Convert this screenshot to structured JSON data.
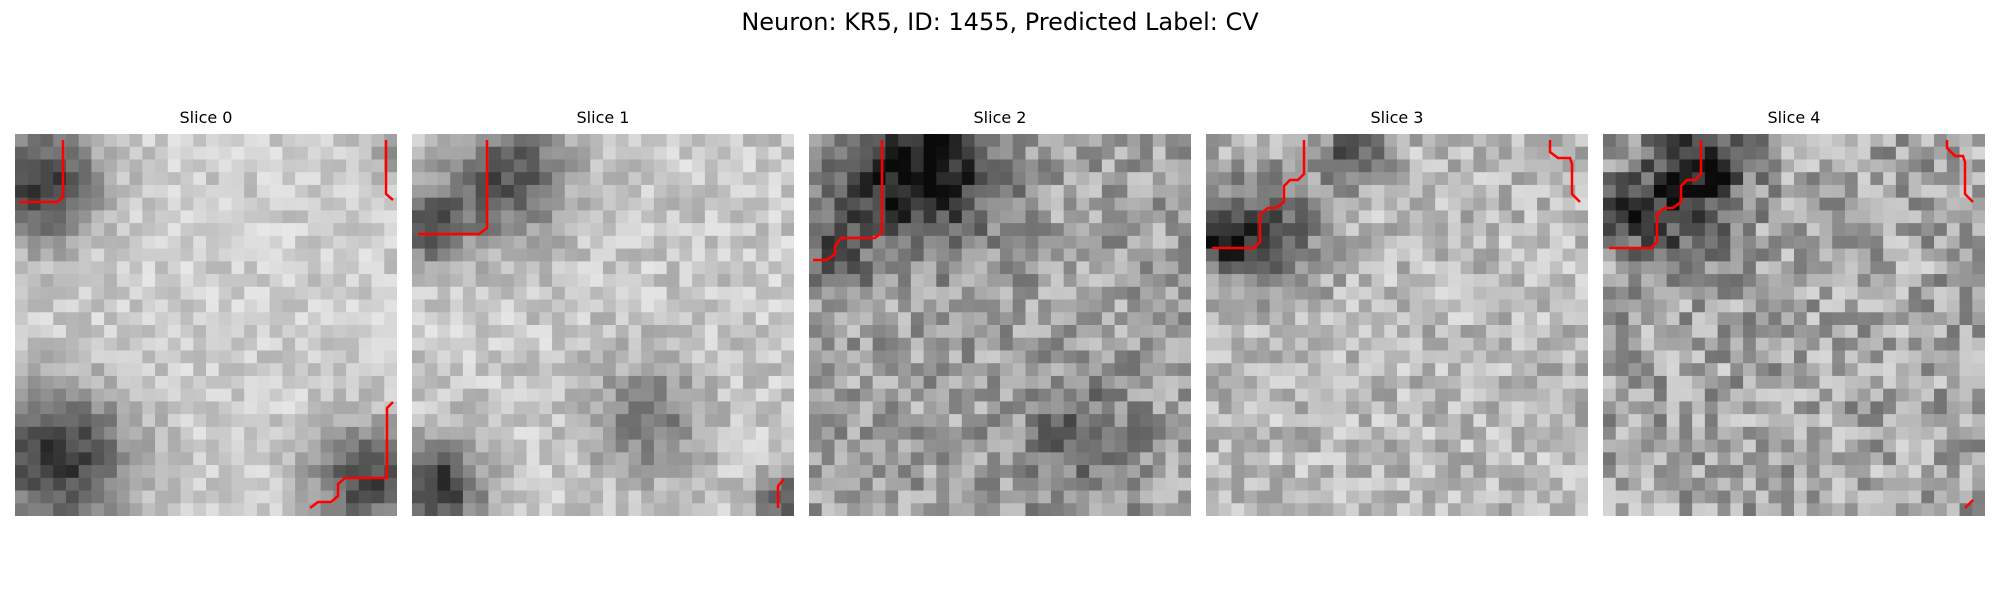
{
  "figure": {
    "title": "Neuron: KR5, ID: 1455, Predicted Label: CV"
  },
  "panels": [
    {
      "title": "Slice 0"
    },
    {
      "title": "Slice 1"
    },
    {
      "title": "Slice 2"
    },
    {
      "title": "Slice 3"
    },
    {
      "title": "Slice 4"
    }
  ],
  "colors": {
    "contour": "#ff0000",
    "colormap": "grayscale"
  }
}
